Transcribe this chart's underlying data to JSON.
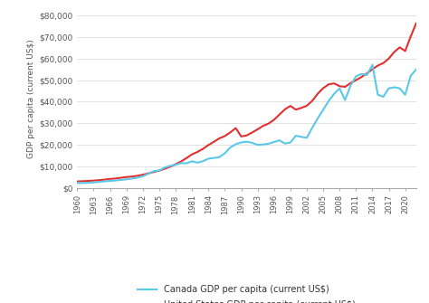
{
  "years": [
    1960,
    1961,
    1962,
    1963,
    1964,
    1965,
    1966,
    1967,
    1968,
    1969,
    1970,
    1971,
    1972,
    1973,
    1974,
    1975,
    1976,
    1977,
    1978,
    1979,
    1980,
    1981,
    1982,
    1983,
    1984,
    1985,
    1986,
    1987,
    1988,
    1989,
    1990,
    1991,
    1992,
    1993,
    1994,
    1995,
    1996,
    1997,
    1998,
    1999,
    2000,
    2001,
    2002,
    2003,
    2004,
    2005,
    2006,
    2007,
    2008,
    2009,
    2010,
    2011,
    2012,
    2013,
    2014,
    2015,
    2016,
    2017,
    2018,
    2019,
    2020,
    2021,
    2022
  ],
  "canada": [
    2294,
    2231,
    2385,
    2519,
    2744,
    2986,
    3242,
    3414,
    3685,
    3957,
    4336,
    4717,
    5389,
    6543,
    7769,
    8048,
    9432,
    10225,
    10702,
    11493,
    11395,
    12336,
    11697,
    12394,
    13569,
    13882,
    14282,
    16038,
    18774,
    20248,
    21108,
    21432,
    20923,
    19962,
    20143,
    20493,
    21291,
    22066,
    20565,
    21059,
    24204,
    23672,
    23236,
    27939,
    32266,
    36271,
    40364,
    43656,
    46180,
    40773,
    47465,
    51794,
    52836,
    52409,
    57119,
    43249,
    42317,
    46213,
    46705,
    46195,
    43242,
    51988,
    54966
  ],
  "usa": [
    3007,
    3067,
    3244,
    3375,
    3574,
    3827,
    4146,
    4336,
    4696,
    5032,
    5234,
    5609,
    6094,
    6726,
    7379,
    8013,
    8875,
    9790,
    10978,
    12263,
    13843,
    15557,
    16683,
    18120,
    19872,
    21370,
    22980,
    24053,
    25747,
    27744,
    23889,
    24342,
    25720,
    27170,
    28782,
    29847,
    31598,
    34065,
    36449,
    38044,
    36330,
    37132,
    38124,
    40430,
    43728,
    46302,
    48060,
    48495,
    47195,
    46909,
    48651,
    50015,
    51456,
    53143,
    55062,
    56785,
    57927,
    60062,
    63064,
    65240,
    63531,
    70249,
    76329
  ],
  "canada_color": "#5bc8e8",
  "usa_color": "#e03030",
  "ylabel": "GDP per capita (current US$)",
  "background_color": "#ffffff",
  "legend_canada": "Canada GDP per capita (current US$)",
  "legend_usa": "United States GDP per capita (current US$)",
  "yticks": [
    0,
    10000,
    20000,
    30000,
    40000,
    50000,
    60000,
    70000,
    80000
  ],
  "ylim": [
    0,
    83000
  ],
  "xlim": [
    1960,
    2022
  ],
  "xtick_years": [
    1960,
    1963,
    1966,
    1969,
    1972,
    1975,
    1978,
    1981,
    1984,
    1987,
    1990,
    1993,
    1996,
    1999,
    2002,
    2005,
    2008,
    2011,
    2014,
    2017,
    2020
  ]
}
